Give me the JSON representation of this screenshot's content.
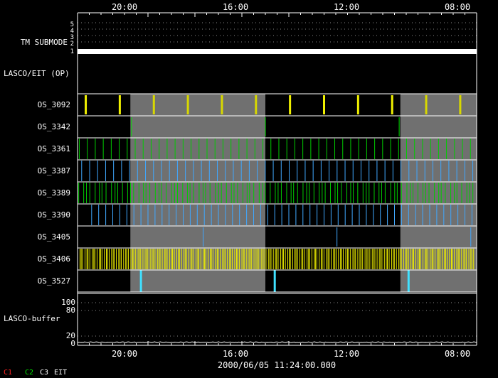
{
  "chart_data": {
    "type": "timeline",
    "title": "2000/06/05 11:24:00.000",
    "time_axis": {
      "direction": "right-to-left",
      "range_hours": [
        -34,
        0
      ],
      "tick_labels": [
        {
          "label": "20:00",
          "hours": -28
        },
        {
          "label": "16:00",
          "hours": -24
        },
        {
          "label": "12:00",
          "hours": -20
        },
        {
          "label": "08:00",
          "hours": -16
        }
      ]
    },
    "shaded_intervals_hours": [
      [
        -29.5,
        -18
      ],
      [
        -6.5,
        0
      ]
    ],
    "tm_submode": {
      "label": "TM SUBMODE",
      "levels": [
        "5",
        "4",
        "3",
        "2",
        "1"
      ],
      "value": 1
    },
    "lasco_eit_label": "LASCO/EIT (OP)",
    "rows": [
      {
        "label": "OS_3092",
        "color": "#f0f000",
        "pattern": "sparse_thick",
        "period_hours": 2.9,
        "offset_hours": 0.7
      },
      {
        "label": "OS_3342",
        "color": "#00e000",
        "pattern": "rare",
        "period_hours": 11.4,
        "offset_hours": 4.6
      },
      {
        "label": "OS_3361",
        "color": "#00cc00",
        "pattern": "regular",
        "period_hours": 0.68,
        "offset_hours": 0.15
      },
      {
        "label": "OS_3387",
        "color": "#40a8ff",
        "pattern": "regular",
        "period_hours": 0.68,
        "offset_hours": 0.35
      },
      {
        "label": "OS_3389",
        "color": "#00cc00",
        "pattern": "dense",
        "period_hours": 0.34,
        "offset_hours": 0.1
      },
      {
        "label": "OS_3390",
        "color": "#40a8ff",
        "pattern": "regular",
        "period_hours": 0.6,
        "offset_hours": 1.2
      },
      {
        "label": "OS_3405",
        "color": "#40a8ff",
        "pattern": "rare",
        "period_hours": 11.4,
        "offset_hours": 10.7
      },
      {
        "label": "OS_3406",
        "color": "#f0f000",
        "pattern": "very_dense",
        "period_hours": 0.15,
        "offset_hours": 0.02
      },
      {
        "label": "OS_3527",
        "color": "#40e0ff",
        "pattern": "rare_thick",
        "period_hours": 11.4,
        "offset_hours": 5.4
      }
    ],
    "lasco_buffer": {
      "label": "LASCO-buffer",
      "y_ticks": [
        "100",
        "80",
        "20",
        "0"
      ],
      "typical_value": 3
    },
    "legend": [
      {
        "label": "C1",
        "color": "#ff2020"
      },
      {
        "label": "C2",
        "color": "#00e000"
      },
      {
        "label": "C3",
        "color": "#ffffff"
      },
      {
        "label": "EIT",
        "color": "#ffffff"
      }
    ]
  }
}
